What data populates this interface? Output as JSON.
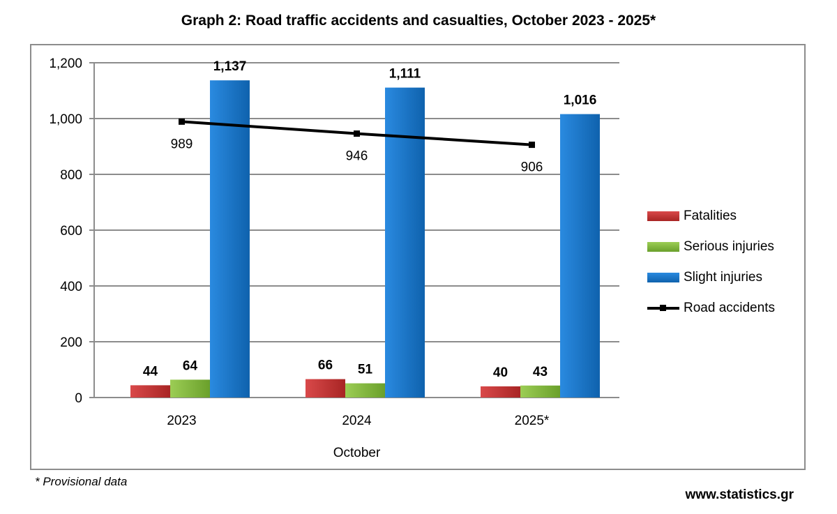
{
  "chart_data": {
    "type": "bar",
    "title": "Graph 2: Road traffic accidents and casualties, October 2023 - 2025*",
    "categories": [
      "2023",
      "2024",
      "2025*"
    ],
    "xlabel": "October",
    "ylabel": "",
    "ylim": [
      0,
      1200
    ],
    "yticks": [
      "0",
      "200",
      "400",
      "600",
      "800",
      "1,000",
      "1,200"
    ],
    "ytick_values": [
      0,
      200,
      400,
      600,
      800,
      1000,
      1200
    ],
    "grid": true,
    "legend_position": "right",
    "series": [
      {
        "name": "Fatalities",
        "type": "bar",
        "color": "#c0302f",
        "values": [
          44,
          66,
          40
        ],
        "labels": [
          "44",
          "66",
          "40"
        ]
      },
      {
        "name": "Serious injuries",
        "type": "bar",
        "color": "#7fb53a",
        "values": [
          64,
          51,
          43
        ],
        "labels": [
          "64",
          "51",
          "43"
        ]
      },
      {
        "name": "Slight injuries",
        "type": "bar",
        "color": "#1673c4",
        "values": [
          1137,
          1111,
          1016
        ],
        "labels": [
          "1,137",
          "1,111",
          "1,016"
        ]
      },
      {
        "name": "Road accidents",
        "type": "line",
        "color": "#000000",
        "values": [
          989,
          946,
          906
        ],
        "labels": [
          "989",
          "946",
          "906"
        ]
      }
    ]
  },
  "footnote": "* Provisional data",
  "source": "www.statistics.gr"
}
